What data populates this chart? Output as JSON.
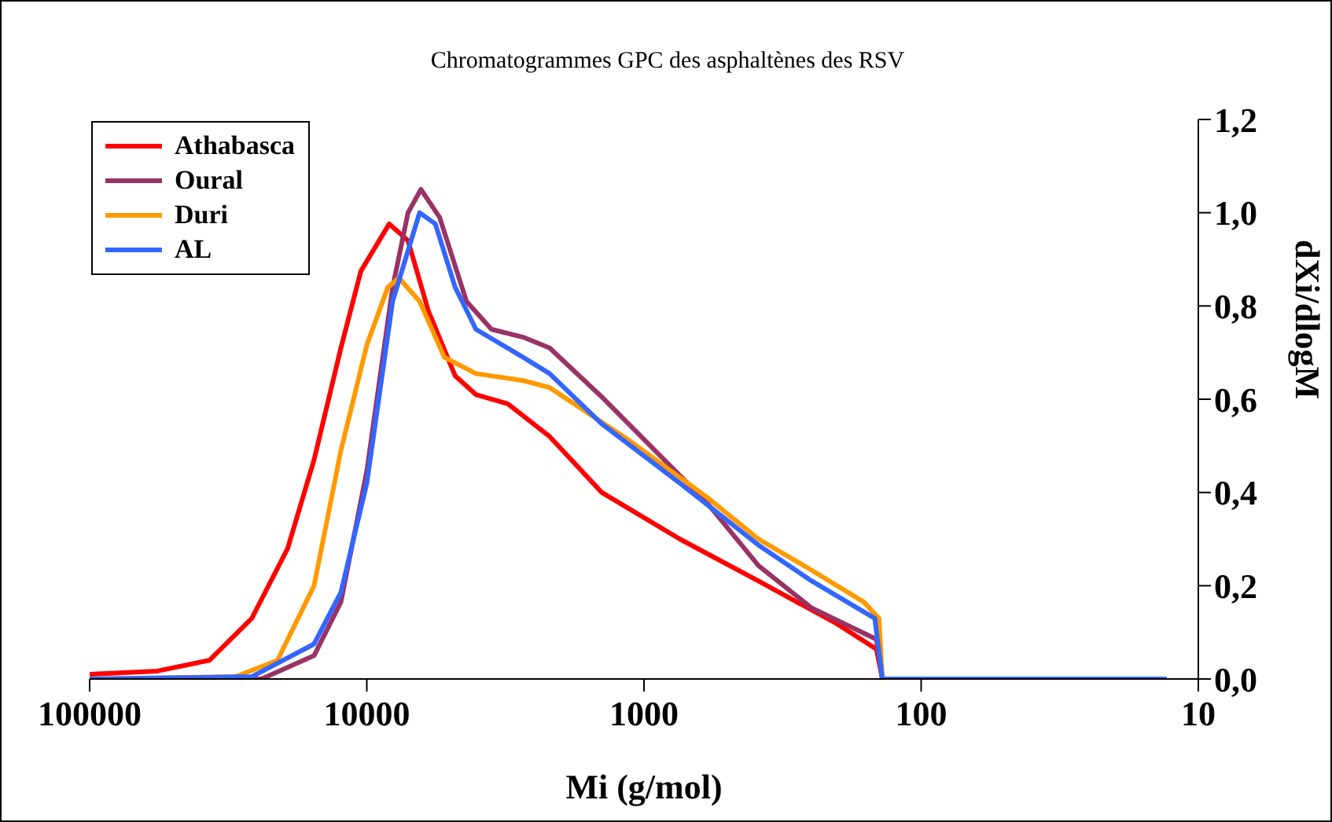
{
  "chart_data": {
    "type": "line",
    "title": "Chromatogrammes GPC des asphaltènes des RSV",
    "xlabel": "Mi (g/mol)",
    "ylabel": "dXi/dlogM",
    "log": "x",
    "xlim": [
      100000,
      10
    ],
    "xticks": [
      100000,
      10000,
      1000,
      100,
      10
    ],
    "ylim": [
      0,
      1.2
    ],
    "yticks": [
      {
        "value": 0,
        "label": "0,0"
      },
      {
        "value": 0.2,
        "label": "0,2"
      },
      {
        "value": 0.4,
        "label": "0,4"
      },
      {
        "value": 0.6,
        "label": "0,6"
      },
      {
        "value": 0.8,
        "label": "0,8"
      },
      {
        "value": 1,
        "label": "1,0"
      },
      {
        "value": 1.2,
        "label": "1,2"
      }
    ],
    "grid": false,
    "legend": "top left",
    "series": [
      {
        "name": "Athabasca",
        "color": "#ff0000",
        "x": [
          100000,
          57000,
          37000,
          26000,
          19300,
          15500,
          12400,
          10500,
          8300,
          7100,
          6000,
          4800,
          4040,
          3100,
          2190,
          1420,
          742,
          386,
          201,
          145,
          138,
          13
        ],
        "values": [
          0.01,
          0.017,
          0.04,
          0.13,
          0.28,
          0.47,
          0.71,
          0.875,
          0.976,
          0.94,
          0.79,
          0.65,
          0.61,
          0.59,
          0.52,
          0.4,
          0.3,
          0.21,
          0.118,
          0.064,
          0,
          0
        ]
      },
      {
        "name": "Oural",
        "color": "#993366",
        "x": [
          100000,
          24000,
          15500,
          12400,
          10000,
          8070,
          7100,
          6380,
          5460,
          4370,
          3550,
          2730,
          2190,
          1420,
          912,
          593,
          386,
          248,
          145,
          138,
          13
        ],
        "values": [
          0,
          0,
          0.05,
          0.165,
          0.446,
          0.84,
          1,
          1.05,
          0.99,
          0.81,
          0.75,
          0.733,
          0.71,
          0.605,
          0.49,
          0.378,
          0.243,
          0.152,
          0.085,
          0,
          0
        ]
      },
      {
        "name": "Duri",
        "color": "#ff9900",
        "x": [
          100000,
          29700,
          21000,
          15500,
          12400,
          10000,
          8400,
          7660,
          6450,
          5250,
          4040,
          2730,
          2190,
          1140,
          593,
          386,
          248,
          161,
          142,
          138,
          13
        ],
        "values": [
          0,
          0.005,
          0.04,
          0.2,
          0.49,
          0.716,
          0.84,
          0.86,
          0.81,
          0.69,
          0.655,
          0.64,
          0.625,
          0.513,
          0.39,
          0.3,
          0.233,
          0.165,
          0.13,
          0,
          0
        ]
      },
      {
        "name": "AL",
        "color": "#3366ff",
        "x": [
          100000,
          26000,
          15500,
          12400,
          10000,
          8070,
          6450,
          5660,
          4800,
          4040,
          2730,
          2190,
          1420,
          742,
          386,
          248,
          147,
          138,
          13
        ],
        "values": [
          0,
          0.005,
          0.075,
          0.186,
          0.42,
          0.81,
          1,
          0.976,
          0.84,
          0.75,
          0.69,
          0.655,
          0.547,
          0.42,
          0.287,
          0.21,
          0.13,
          0,
          0
        ]
      }
    ]
  }
}
